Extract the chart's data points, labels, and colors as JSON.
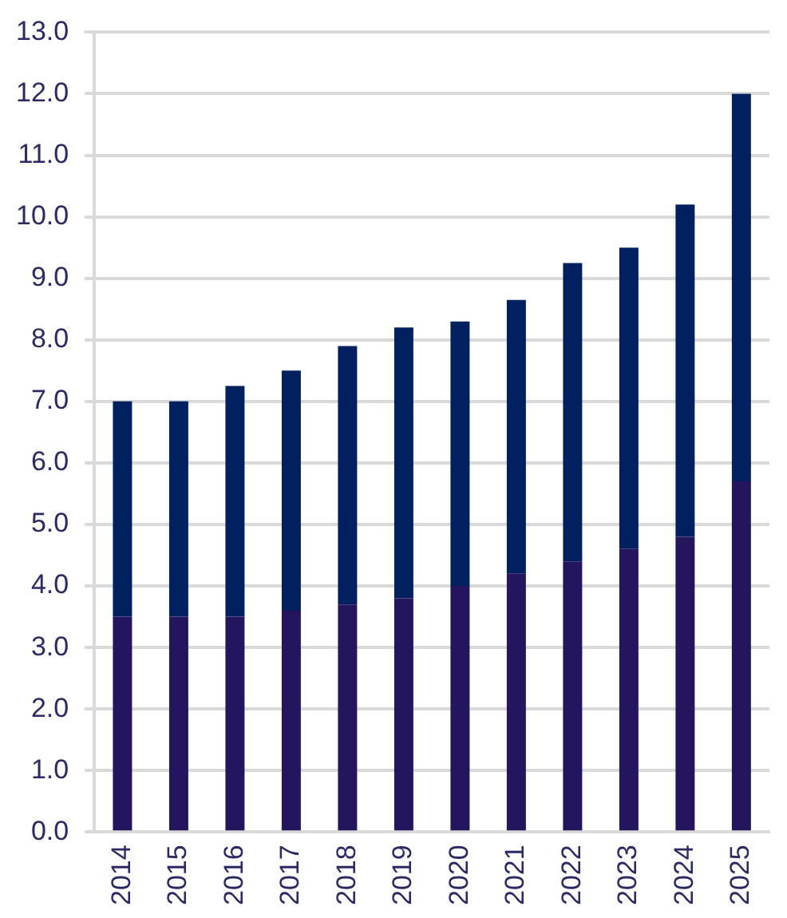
{
  "chart_data": {
    "type": "bar",
    "stacked": true,
    "categories": [
      "2014",
      "2015",
      "2016",
      "2017",
      "2018",
      "2019",
      "2020",
      "2021",
      "2022",
      "2023",
      "2024",
      "2025"
    ],
    "series": [
      {
        "color": "#24155e",
        "values": [
          3.5,
          3.5,
          3.5,
          3.6,
          3.7,
          3.8,
          4.0,
          4.2,
          4.4,
          4.6,
          4.8,
          5.7
        ]
      },
      {
        "color": "#002060",
        "values": [
          3.5,
          3.5,
          3.75,
          3.9,
          4.2,
          4.4,
          4.3,
          4.45,
          4.85,
          4.9,
          5.4,
          6.3
        ]
      }
    ],
    "ylim": [
      0,
      13
    ],
    "yticks": [
      {
        "value": 0,
        "label": "0.0"
      },
      {
        "value": 1,
        "label": "1.0"
      },
      {
        "value": 2,
        "label": "2.0"
      },
      {
        "value": 3,
        "label": "3.0"
      },
      {
        "value": 4,
        "label": "4.0"
      },
      {
        "value": 5,
        "label": "5.0"
      },
      {
        "value": 6,
        "label": "6.0"
      },
      {
        "value": 7,
        "label": "7.0"
      },
      {
        "value": 8,
        "label": "8.0"
      },
      {
        "value": 9,
        "label": "9.0"
      },
      {
        "value": 10,
        "label": "10.0"
      },
      {
        "value": 11,
        "label": "11.0"
      },
      {
        "value": 12,
        "label": "12.0"
      },
      {
        "value": 13,
        "label": "13.0"
      }
    ],
    "grid": "y",
    "legend": false
  }
}
